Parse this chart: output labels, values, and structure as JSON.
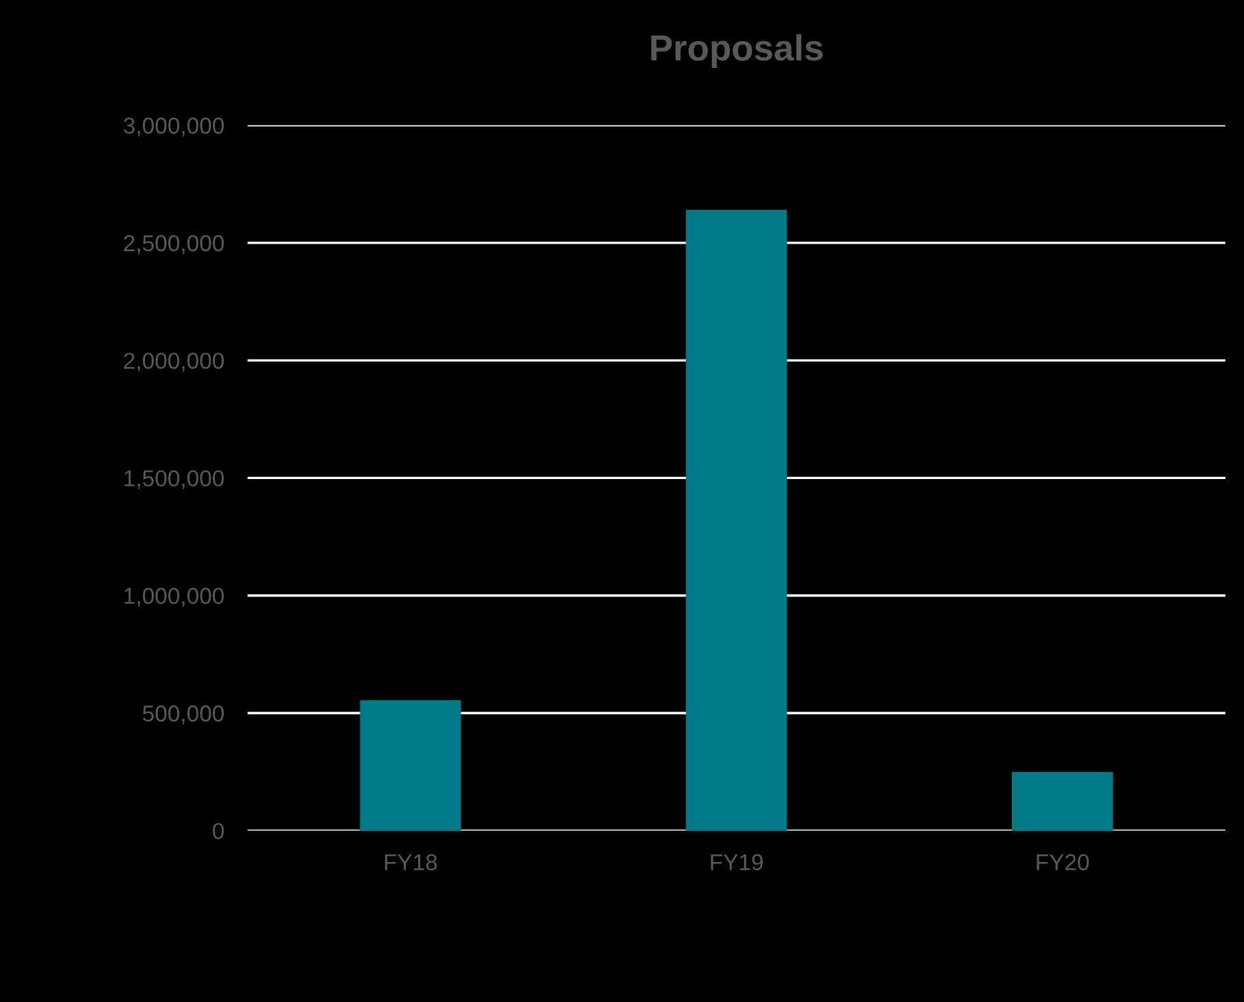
{
  "chart_data": {
    "type": "bar",
    "title": "Proposals",
    "categories": [
      "FY18",
      "FY19",
      "FY20"
    ],
    "values": [
      555000,
      2640000,
      250000
    ],
    "color": "#007a87",
    "ylim": [
      0,
      3000000
    ],
    "yticks": [
      {
        "value": 0,
        "label": "0"
      },
      {
        "value": 500000,
        "label": "500,000"
      },
      {
        "value": 1000000,
        "label": "1,000,000"
      },
      {
        "value": 1500000,
        "label": "1,500,000"
      },
      {
        "value": 2000000,
        "label": "2,000,000"
      },
      {
        "value": 2500000,
        "label": "2,500,000"
      },
      {
        "value": 3000000,
        "label": "3,000,000"
      }
    ],
    "grid": "y"
  }
}
